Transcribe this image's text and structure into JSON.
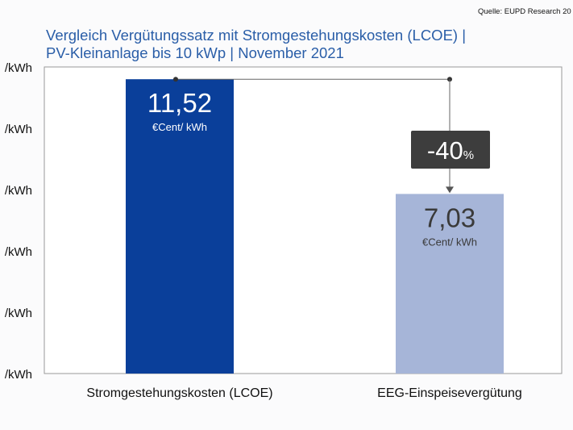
{
  "source_label": "Quelle: EUPD Research 20",
  "title": {
    "line1": "Vergleich Vergütungssatz mit Stromgestehungskosten (LCOE) |",
    "line2": "PV-Kleinanlage bis 10 kWp | November 2021"
  },
  "chart_data": {
    "type": "bar",
    "categories": [
      "Stromgestehungskosten (LCOE)",
      "EEG-Einspeisevergütung"
    ],
    "values": [
      11.52,
      7.03
    ],
    "value_labels": [
      "11,52",
      "7,03"
    ],
    "unit_label": "€Cent/ kWh",
    "ylim": [
      0,
      12
    ],
    "y_ticks": [
      0,
      2.4,
      4.8,
      7.2,
      9.6,
      12
    ],
    "y_tick_labels": [
      "/kWh",
      "/kWh",
      "/kWh",
      "/kWh",
      "/kWh",
      "/kWh"
    ],
    "grid": false,
    "colors": [
      "#0a3f9a",
      "#a6b5d8"
    ],
    "value_label_colors": [
      "#ffffff",
      "#3a3a3a"
    ],
    "annotation": {
      "number": "-40",
      "suffix": "%",
      "background": "#3d3d3d",
      "text_color": "#ffffff"
    }
  }
}
